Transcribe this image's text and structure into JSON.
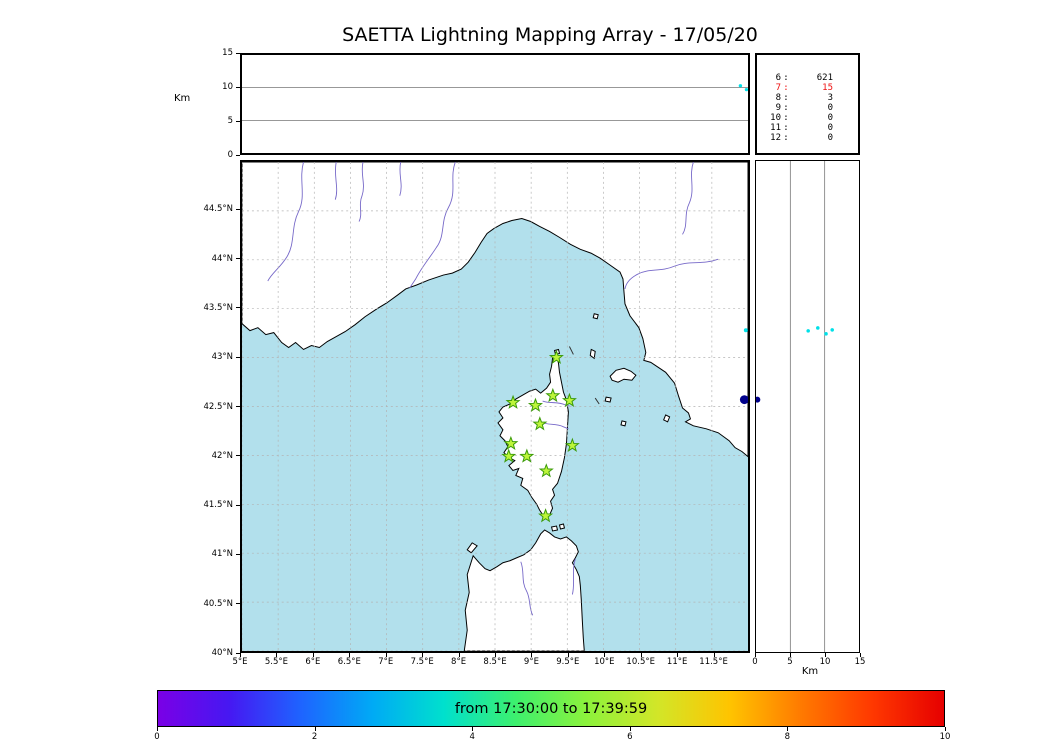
{
  "chart_data": {
    "type": "scatter",
    "title": "SAETTA Lightning Mapping Array - 17/05/20",
    "colors": {
      "sea": "#b2e0ec",
      "land": "#ffffff",
      "coast": "#000000",
      "river": "#7668c8",
      "grid": "#b3b3b3",
      "station_fill": "#bdf53a",
      "station_stroke": "#3c9b0a",
      "detection_cyan": "#00e0e8",
      "detection_navy": "#00008b"
    },
    "altitude_time_panel": {
      "axis_label": "Km",
      "ylim": [
        0,
        15
      ],
      "yticks": [
        {
          "label": "15",
          "km": 15
        },
        {
          "label": "10",
          "km": 10
        },
        {
          "label": "5",
          "km": 5
        },
        {
          "label": "0",
          "km": 0
        }
      ],
      "gridlines_km": [
        5,
        10
      ],
      "points": [
        {
          "x_frac": 0.985,
          "km": 10.3,
          "color": "#00e0e8"
        },
        {
          "x_frac": 0.997,
          "km": 9.7,
          "color": "#00e0e8"
        }
      ]
    },
    "station_count_panel": {
      "rows": [
        {
          "stations": "6",
          "count": "621",
          "color": "#000000"
        },
        {
          "stations": "7",
          "count": "15",
          "color": "#ee1111"
        },
        {
          "stations": "8",
          "count": "3",
          "color": "#000000"
        },
        {
          "stations": "9",
          "count": "0",
          "color": "#000000"
        },
        {
          "stations": "10",
          "count": "0",
          "color": "#000000"
        },
        {
          "stations": "11",
          "count": "0",
          "color": "#000000"
        },
        {
          "stations": "12",
          "count": "0",
          "color": "#000000"
        }
      ]
    },
    "map_panel": {
      "lon_range": [
        5,
        12
      ],
      "lat_range": [
        40,
        45
      ],
      "lat_ticks": [
        {
          "label": "44.5°N",
          "lat": 44.5
        },
        {
          "label": "44°N",
          "lat": 44
        },
        {
          "label": "43.5°N",
          "lat": 43.5
        },
        {
          "label": "43°N",
          "lat": 43
        },
        {
          "label": "42.5°N",
          "lat": 42.5
        },
        {
          "label": "42°N",
          "lat": 42
        },
        {
          "label": "41.5°N",
          "lat": 41.5
        },
        {
          "label": "41°N",
          "lat": 41
        },
        {
          "label": "40.5°N",
          "lat": 40.5
        },
        {
          "label": "40°N",
          "lat": 40
        }
      ],
      "lon_ticks": [
        {
          "label": "5°E",
          "lon": 5
        },
        {
          "label": "5.5°E",
          "lon": 5.5
        },
        {
          "label": "6°E",
          "lon": 6
        },
        {
          "label": "6.5°E",
          "lon": 6.5
        },
        {
          "label": "7°E",
          "lon": 7
        },
        {
          "label": "7.5°E",
          "lon": 7.5
        },
        {
          "label": "8°E",
          "lon": 8
        },
        {
          "label": "8.5°E",
          "lon": 8.5
        },
        {
          "label": "9°E",
          "lon": 9
        },
        {
          "label": "9.5°E",
          "lon": 9.5
        },
        {
          "label": "10°E",
          "lon": 10
        },
        {
          "label": "10.5°E",
          "lon": 10.5
        },
        {
          "label": "11°E",
          "lon": 11
        },
        {
          "label": "11.5°E",
          "lon": 11.5
        }
      ],
      "stations": [
        {
          "lon": 9.35,
          "lat": 43.0
        },
        {
          "lon": 8.75,
          "lat": 42.54
        },
        {
          "lon": 9.06,
          "lat": 42.51
        },
        {
          "lon": 9.3,
          "lat": 42.61
        },
        {
          "lon": 9.53,
          "lat": 42.56
        },
        {
          "lon": 9.12,
          "lat": 42.32
        },
        {
          "lon": 8.72,
          "lat": 42.12
        },
        {
          "lon": 9.57,
          "lat": 42.1
        },
        {
          "lon": 8.69,
          "lat": 41.99
        },
        {
          "lon": 8.94,
          "lat": 41.99
        },
        {
          "lon": 9.21,
          "lat": 41.84
        },
        {
          "lon": 9.2,
          "lat": 41.38
        }
      ],
      "detections": [
        {
          "lon": 11.97,
          "lat": 43.28,
          "color": "#00e0e8",
          "r": 2
        },
        {
          "lon": 11.95,
          "lat": 42.57,
          "color": "#00008b",
          "r": 4.5
        }
      ]
    },
    "altitude_lat_panel": {
      "axis_label": "Km",
      "xlim": [
        0,
        15
      ],
      "xticks": [
        {
          "label": "0",
          "km": 0
        },
        {
          "label": "5",
          "km": 5
        },
        {
          "label": "10",
          "km": 10
        },
        {
          "label": "15",
          "km": 15
        }
      ],
      "gridlines_km": [
        5,
        10
      ],
      "points": [
        {
          "km": 7.6,
          "lat": 43.27,
          "color": "#00e0e8",
          "r": 1.8
        },
        {
          "km": 9.0,
          "lat": 43.3,
          "color": "#00e0e8",
          "r": 1.8
        },
        {
          "km": 10.2,
          "lat": 43.24,
          "color": "#00e0e8",
          "r": 1.8
        },
        {
          "km": 11.1,
          "lat": 43.28,
          "color": "#00e0e8",
          "r": 1.8
        },
        {
          "km": 0.2,
          "lat": 42.57,
          "color": "#00008b",
          "r": 3
        }
      ]
    },
    "colorbar": {
      "label": "from 17:30:00 to 17:39:59",
      "range": [
        0,
        10
      ],
      "ticks": [
        {
          "label": "0",
          "value": 0
        },
        {
          "label": "2",
          "value": 2
        },
        {
          "label": "4",
          "value": 4
        },
        {
          "label": "6",
          "value": 6
        },
        {
          "label": "8",
          "value": 8
        },
        {
          "label": "10",
          "value": 10
        }
      ],
      "gradient": [
        "#7a00e6",
        "#4618f2",
        "#1e64ff",
        "#00aaf5",
        "#00e0cd",
        "#3df06e",
        "#8cf23c",
        "#d2e628",
        "#ffc400",
        "#ff7a00",
        "#ff3800",
        "#e60000"
      ]
    }
  }
}
